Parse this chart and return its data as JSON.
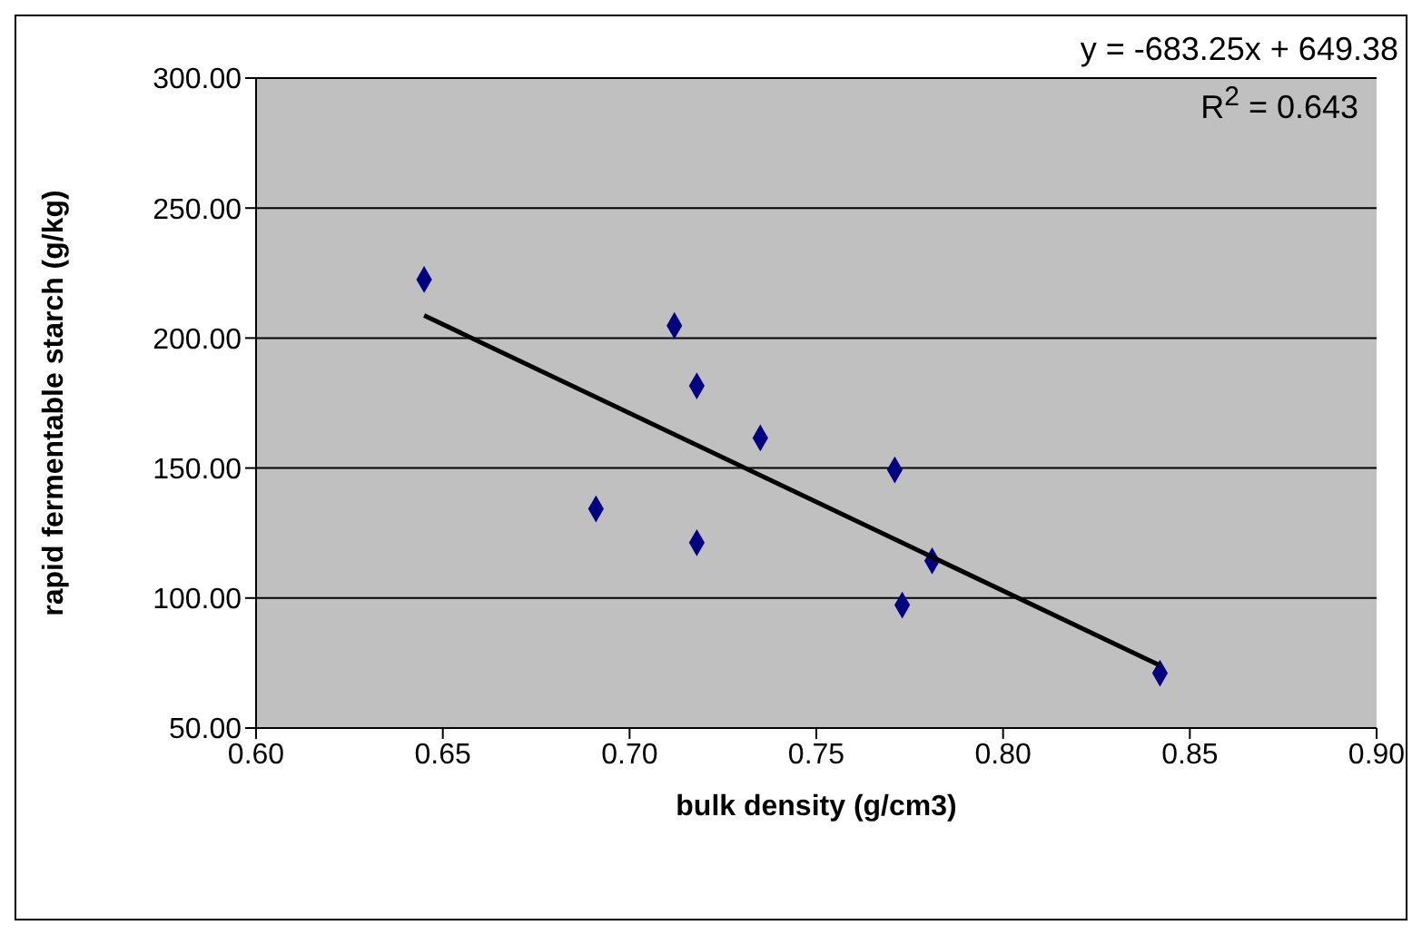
{
  "chart_data": {
    "type": "scatter",
    "xlabel": "bulk density (g/cm3)",
    "ylabel": "rapid fermentable starch (g/kg)",
    "annotations": [
      "y = -683.25x + 649.38",
      "R$^{2}$ = 0.643"
    ],
    "series": [
      {
        "type": "scatter",
        "color": "#000080",
        "marker": "diamond",
        "x": [
          0.645,
          0.712,
          0.718,
          0.735,
          0.691,
          0.718,
          0.771,
          0.781,
          0.773,
          0.842
        ],
        "values": [
          222.5,
          204.8,
          181.6,
          161.6,
          134.3,
          121.3,
          149.3,
          114.3,
          97.3,
          71.1
        ]
      },
      {
        "type": "line",
        "color": "#000000",
        "marker": "none",
        "x": [
          0.645,
          0.842
        ],
        "values": [
          208.7,
          74.1
        ]
      }
    ],
    "xlim": [
      0.6,
      0.9
    ],
    "xticks": [
      {
        "value": 0.6,
        "label": "0.60"
      },
      {
        "value": 0.65,
        "label": "0.65"
      },
      {
        "value": 0.7,
        "label": "0.70"
      },
      {
        "value": 0.75,
        "label": "0.75"
      },
      {
        "value": 0.8,
        "label": "0.80"
      },
      {
        "value": 0.85,
        "label": "0.85"
      },
      {
        "value": 0.9,
        "label": "0.90"
      }
    ],
    "ylim": [
      50,
      300
    ],
    "yticks": [
      {
        "value": 50,
        "label": "50.00"
      },
      {
        "value": 100,
        "label": "100.00"
      },
      {
        "value": 150,
        "label": "150.00"
      },
      {
        "value": 200,
        "label": "200.00"
      },
      {
        "value": 250,
        "label": "250.00"
      },
      {
        "value": 300,
        "label": "300.00"
      }
    ],
    "grid": "y",
    "legend": false
  }
}
